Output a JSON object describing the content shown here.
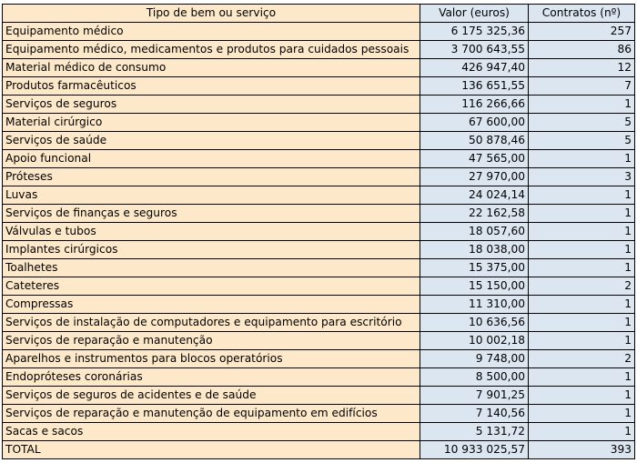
{
  "headers": [
    "Tipo de bem ou serviço",
    "Valor (euros)",
    "Contratos (nº)"
  ],
  "rows": [
    [
      "Equipamento médico",
      "6 175 325,36",
      "257"
    ],
    [
      "Equipamento médico, medicamentos e produtos para cuidados pessoais",
      "3 700 643,55",
      "86"
    ],
    [
      "Material médico de consumo",
      "426 947,40",
      "12"
    ],
    [
      "Produtos farmacêuticos",
      "136 651,55",
      "7"
    ],
    [
      "Serviços de seguros",
      "116 266,66",
      "1"
    ],
    [
      "Material cirúrgico",
      "67 600,00",
      "5"
    ],
    [
      "Serviços de saúde",
      "50 878,46",
      "5"
    ],
    [
      "Apoio funcional",
      "47 565,00",
      "1"
    ],
    [
      "Próteses",
      "27 970,00",
      "3"
    ],
    [
      "Luvas",
      "24 024,14",
      "1"
    ],
    [
      "Serviços de finanças e seguros",
      "22 162,58",
      "1"
    ],
    [
      "Válvulas e tubos",
      "18 057,60",
      "1"
    ],
    [
      "Implantes cirúrgicos",
      "18 038,00",
      "1"
    ],
    [
      "Toalhetes",
      "15 375,00",
      "1"
    ],
    [
      "Cateteres",
      "15 150,00",
      "2"
    ],
    [
      "Compressas",
      "11 310,00",
      "1"
    ],
    [
      "Serviços de instalação de computadores e equipamento para escritório",
      "10 636,56",
      "1"
    ],
    [
      "Serviços de reparação e manutenção",
      "10 002,18",
      "1"
    ],
    [
      "Aparelhos e instrumentos para blocos operatórios",
      "9 748,00",
      "2"
    ],
    [
      "Endopróteses coronárias",
      "8 500,00",
      "1"
    ],
    [
      "Serviços de seguros de acidentes e de saúde",
      "7 901,25",
      "1"
    ],
    [
      "Serviços de reparação e manutenção de equipamento em edifícios",
      "7 140,56",
      "1"
    ],
    [
      "Sacas e sacos",
      "5 131,72",
      "1"
    ]
  ],
  "total": [
    "TOTAL",
    "10 933 025,57",
    "393"
  ],
  "colors": {
    "label_column": "#fde9c9",
    "value_columns": "#dce6f1",
    "border": "#000000"
  }
}
